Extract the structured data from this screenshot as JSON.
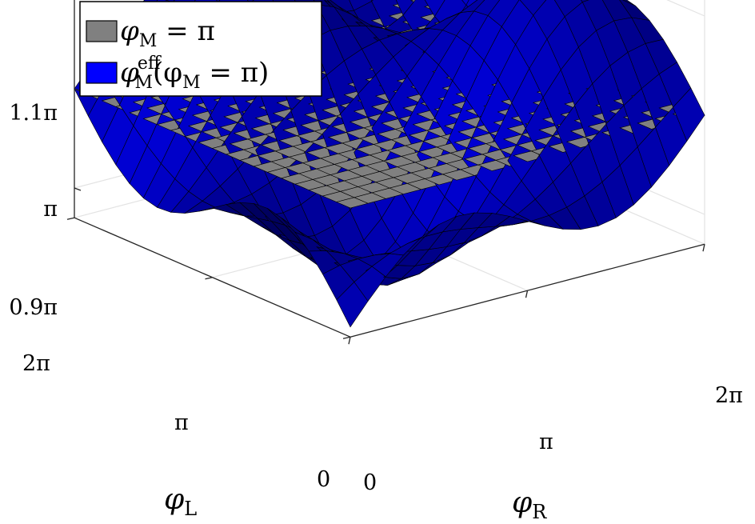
{
  "chart_data": {
    "type": "surface",
    "view": "3d",
    "xlabel": "φ",
    "xlabel_sub": "R",
    "ylabel": "φ",
    "ylabel_sub": "L",
    "x_ticks": [
      "0",
      "π",
      "2π"
    ],
    "y_ticks": [
      "0",
      "π",
      "2π"
    ],
    "z_ticks": [
      "0.9π",
      "π",
      "1.1π"
    ],
    "xlim": [
      0,
      6.283
    ],
    "ylim": [
      0,
      6.283
    ],
    "zlim_in_pi": [
      0.87,
      1.13
    ],
    "grid": true,
    "legend_position": "top-left",
    "series": [
      {
        "name": "φ",
        "name_sub": "M",
        "name_rest": " = π",
        "kind": "constant surface",
        "z_in_pi": 1.0,
        "color": "#808080",
        "edge_color": "#000000"
      },
      {
        "name": "φ",
        "name_sup": "eff",
        "name_sub": "M",
        "name_rest": "(φ",
        "name_sub2": "M",
        "name_rest2": " = π)",
        "kind": "saddle-like surface over the φL–φR plane",
        "color": "#0000ff",
        "edge_color": "#000000",
        "z_in_pi_at_corners": {
          "L0_R0": 0.88,
          "L2pi_R0": 1.0,
          "L0_R2pi": 1.0,
          "L2pi_R2pi": 1.12
        },
        "z_in_pi_peaks": [
          {
            "phiL": 6.283,
            "phiR": 1.571,
            "z": 1.05
          },
          {
            "phiL": 3.142,
            "phiR": 3.142,
            "z": 1.06
          },
          {
            "phiL": 0,
            "phiR": 4.712,
            "z": 1.05
          }
        ],
        "z_in_pi_troughs": [
          {
            "phiL": 3.142,
            "phiR": 0,
            "z": 0.95
          },
          {
            "phiL": 0,
            "phiR": 3.142,
            "z": 0.94
          }
        ],
        "grid_resolution": 20
      }
    ]
  }
}
